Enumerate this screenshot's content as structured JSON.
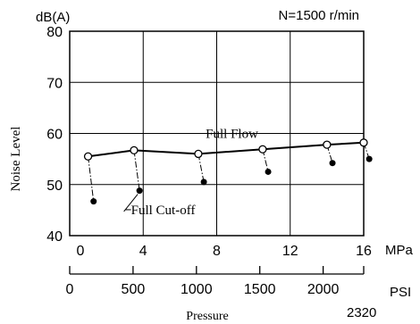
{
  "chart_data": {
    "type": "line",
    "title": "N=1500 r/min",
    "ylabel": "Noise Level",
    "yunit": "dB(A)",
    "xlabel": "Pressure",
    "ylim": [
      40,
      80
    ],
    "yticks": [
      40,
      50,
      60,
      70,
      80
    ],
    "x_primary": {
      "unit": "MPa",
      "range": [
        0,
        16
      ],
      "ticks": [
        0,
        4,
        8,
        12,
        16
      ]
    },
    "x_secondary": {
      "unit": "PSI",
      "range": [
        0,
        2320
      ],
      "ticks": [
        0,
        500,
        1000,
        1500,
        2000
      ],
      "end_tick": "2320"
    },
    "grid": true,
    "series": [
      {
        "name": "Full Flow",
        "marker": "open-circle",
        "x": [
          1.0,
          3.5,
          7.0,
          10.5,
          14.0,
          16.0
        ],
        "y": [
          55.5,
          56.7,
          56.0,
          56.9,
          57.8,
          58.2
        ]
      },
      {
        "name": "Full Cut-off",
        "marker": "filled-circle",
        "x": [
          1.3,
          3.8,
          7.3,
          10.8,
          14.3,
          16.3
        ],
        "y": [
          46.7,
          48.8,
          50.5,
          52.5,
          54.2,
          55.0
        ]
      }
    ],
    "annotations": [
      "Full Flow",
      "Full Cut-off"
    ]
  }
}
